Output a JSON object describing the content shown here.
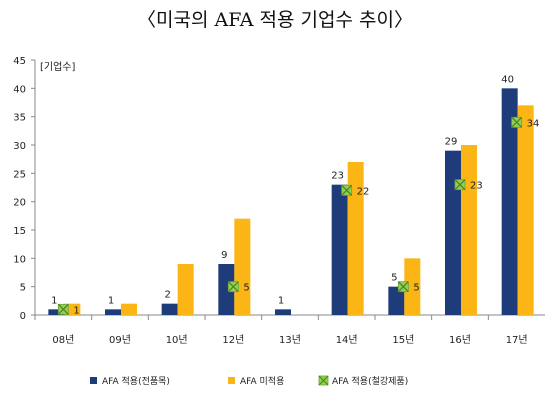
{
  "chart_data": {
    "type": "bar",
    "title": "〈미국의 AFA 적용 기업수 추이〉",
    "ylabel": "[기업수]",
    "ylim": [
      0,
      45
    ],
    "yticks": [
      0,
      5,
      10,
      15,
      20,
      25,
      30,
      35,
      40,
      45
    ],
    "categories": [
      "08년",
      "09년",
      "10년",
      "12년",
      "13년",
      "14년",
      "15년",
      "16년",
      "17년"
    ],
    "series": [
      {
        "name": "AFA 적용(전품목)",
        "color": "#1f3c7a",
        "values": [
          1,
          1,
          2,
          9,
          1,
          23,
          5,
          29,
          40
        ]
      },
      {
        "name": "AFA 미적용",
        "color": "#fbb616",
        "values": [
          2,
          2,
          9,
          17,
          0,
          27,
          10,
          30,
          37
        ]
      },
      {
        "name": "AFA 적용(철강제품)",
        "color": "#92d050",
        "marker": "x-square",
        "values": [
          1,
          null,
          null,
          5,
          null,
          22,
          5,
          23,
          34
        ]
      }
    ],
    "data_labels": {
      "series0": [
        "1",
        "1",
        "2",
        "9",
        "1",
        "23",
        "5",
        "29",
        "40"
      ],
      "series2": [
        "1",
        null,
        null,
        "5",
        null,
        "22",
        "5",
        "23",
        "34"
      ]
    },
    "legend_position": "bottom",
    "grid": false
  }
}
